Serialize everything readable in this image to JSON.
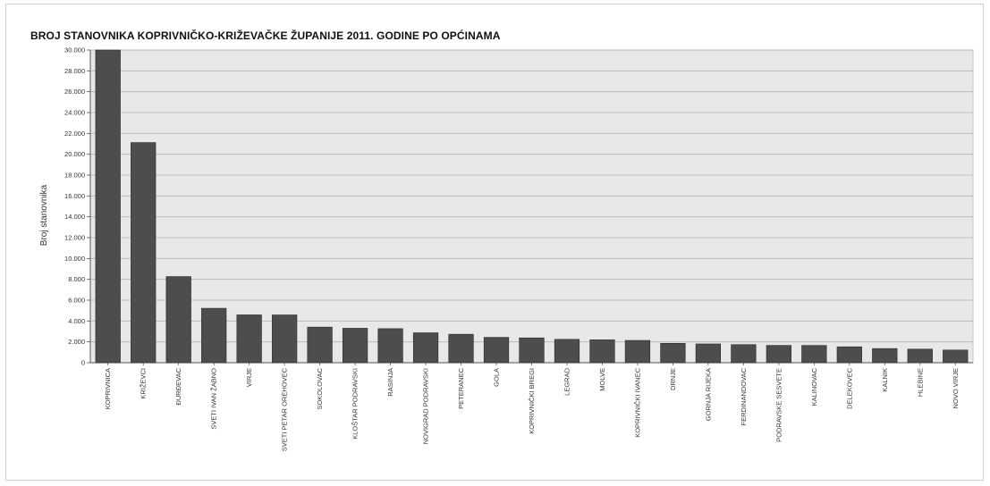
{
  "chart_data": {
    "type": "bar",
    "title": "BROJ STANOVNIKA KOPRIVNIČKO-KRIŽEVAČKE ŽUPANIJE 2011. GODINE PO OPĆINAMA",
    "ylabel": "Broj stanovnika",
    "xlabel": "",
    "ylim": [
      0,
      30000
    ],
    "yticks": [
      0,
      2000,
      4000,
      6000,
      8000,
      10000,
      12000,
      14000,
      16000,
      18000,
      20000,
      22000,
      24000,
      26000,
      28000,
      30000
    ],
    "ytick_labels": [
      "0",
      "2.000",
      "4.000",
      "6.000",
      "8.000",
      "10.000",
      "12.000",
      "14.000",
      "16.000",
      "18.000",
      "20.000",
      "22.000",
      "24.000",
      "26.000",
      "28.000",
      "30.000"
    ],
    "grid": true,
    "bar_color": "#4d4d4d",
    "plot_background": "#e8e8e8",
    "categories": [
      "KOPRIVNICA",
      "KRIŽEVCI",
      "ĐURĐEVAC",
      "SVETI IVAN ŽABNO",
      "VIRJE",
      "SVETI PETAR OREHOVEC",
      "SOKOLOVAC",
      "KLOŠTAR PODRAVSKI",
      "RASINJA",
      "NOVIGRAD PODRAVSKI",
      "PETERANEC",
      "GOLA",
      "KOPRIVNIČKI BREGI",
      "LEGRAD",
      "MOLVE",
      "KOPRIVNIČKI IVANEC",
      "DRNJE",
      "GORNJA RIJEKA",
      "FERDINANDOVAC",
      "PODRAVSKE SESVETE",
      "KALINOVAC",
      "DELEKOVEC",
      "KALNIK",
      "HLEBINE",
      "NOVO VIRJE"
    ],
    "values": [
      30854,
      21122,
      8264,
      5222,
      4589,
      4583,
      3417,
      3306,
      3267,
      2870,
      2731,
      2431,
      2381,
      2241,
      2195,
      2139,
      1863,
      1802,
      1737,
      1662,
      1656,
      1528,
      1358,
      1303,
      1216
    ]
  }
}
